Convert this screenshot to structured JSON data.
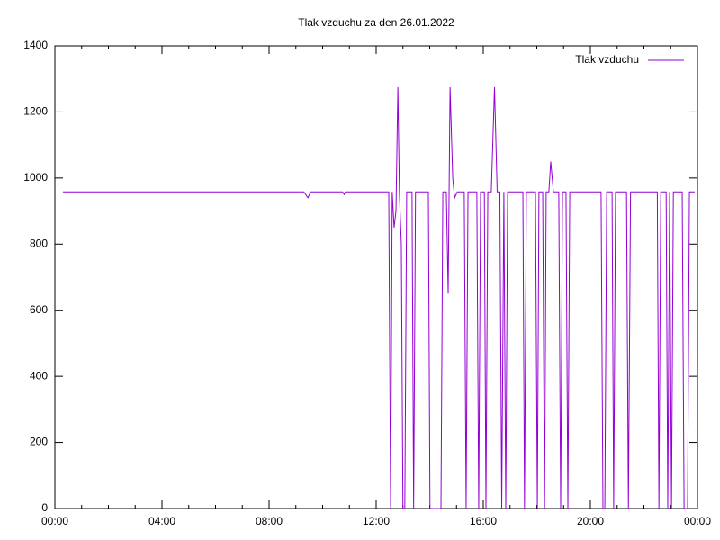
{
  "chart_data": {
    "type": "line",
    "title": "Tlak vzduchu za den 26.01.2022",
    "x": [
      0.3,
      9.3,
      9.45,
      9.55,
      10.75,
      10.8,
      10.85,
      12.47,
      12.54,
      12.6,
      12.67,
      12.74,
      12.81,
      12.87,
      12.94,
      13.0,
      13.07,
      13.14,
      13.34,
      13.4,
      13.47,
      13.95,
      14.01,
      14.42,
      14.49,
      14.62,
      14.69,
      14.76,
      14.86,
      14.93,
      15.03,
      15.29,
      15.36,
      15.43,
      15.76,
      15.83,
      15.9,
      16.04,
      16.1,
      16.17,
      16.3,
      16.42,
      16.52,
      16.62,
      16.69,
      16.77,
      16.84,
      16.91,
      17.48,
      17.54,
      17.61,
      17.95,
      18.02,
      18.08,
      18.22,
      18.29,
      18.35,
      18.45,
      18.52,
      18.62,
      18.82,
      18.89,
      18.96,
      19.09,
      19.16,
      19.23,
      20.4,
      20.47,
      20.54,
      20.61,
      20.81,
      20.87,
      20.94,
      21.35,
      21.42,
      21.5,
      22.5,
      22.56,
      22.63,
      22.83,
      22.89,
      22.96,
      23.03,
      23.1,
      23.43,
      23.5,
      23.63,
      23.7,
      23.9
    ],
    "series": [
      {
        "name": "Tlak vzduchu",
        "color": "#9400d3",
        "values": [
          958,
          958,
          940,
          958,
          958,
          950,
          958,
          958,
          0,
          958,
          850,
          900,
          1275,
          950,
          800,
          0,
          0,
          958,
          958,
          0,
          958,
          958,
          0,
          0,
          958,
          958,
          650,
          1275,
          1000,
          940,
          958,
          958,
          0,
          958,
          958,
          0,
          958,
          958,
          0,
          958,
          958,
          1275,
          958,
          958,
          0,
          958,
          0,
          958,
          958,
          0,
          958,
          958,
          0,
          958,
          958,
          0,
          958,
          958,
          1050,
          958,
          958,
          0,
          958,
          958,
          0,
          958,
          958,
          0,
          0,
          958,
          958,
          0,
          958,
          958,
          0,
          958,
          958,
          0,
          958,
          958,
          0,
          958,
          0,
          958,
          958,
          0,
          0,
          958,
          958
        ]
      }
    ],
    "xlim": [
      0,
      24
    ],
    "xticks": [
      {
        "value": 0,
        "label": "00:00"
      },
      {
        "value": 4,
        "label": "04:00"
      },
      {
        "value": 8,
        "label": "08:00"
      },
      {
        "value": 12,
        "label": "12:00"
      },
      {
        "value": 16,
        "label": "16:00"
      },
      {
        "value": 20,
        "label": "20:00"
      },
      {
        "value": 24,
        "label": "00:00"
      }
    ],
    "ylim": [
      0,
      1400
    ],
    "yticks": [
      0,
      200,
      400,
      600,
      800,
      1000,
      1200,
      1400
    ],
    "legend": "top-right"
  }
}
